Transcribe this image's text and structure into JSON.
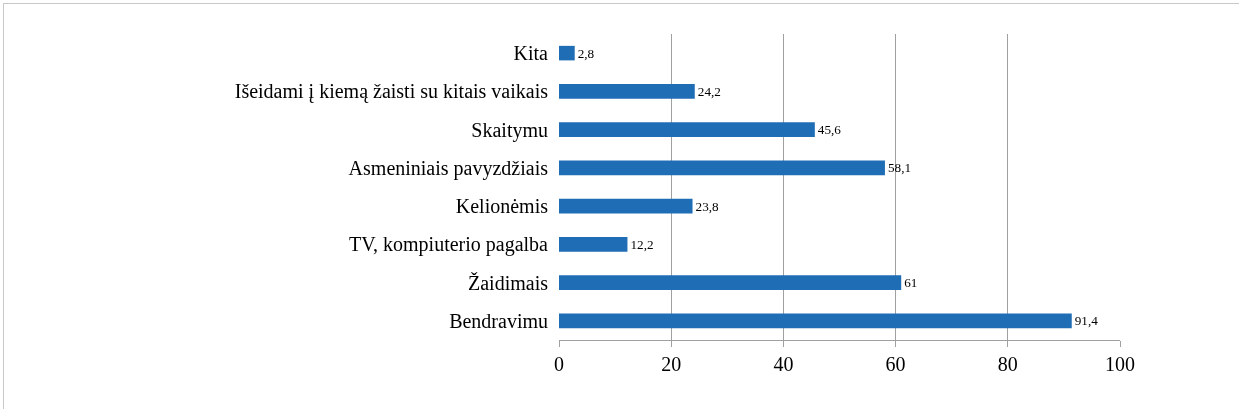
{
  "chart_data": {
    "type": "bar",
    "orientation": "horizontal",
    "categories": [
      "Kita",
      "Išeidami į kiemą žaisti su kitais vaikais",
      "Skaitymu",
      "Asmeniniais pavyzdžiais",
      "Kelionėmis",
      "TV, kompiuterio pagalba",
      "Žaidimais",
      "Bendravimu"
    ],
    "values": [
      2.8,
      24.2,
      45.6,
      58.1,
      23.8,
      12.2,
      61,
      91.4
    ],
    "value_labels": [
      "2,8",
      "24,2",
      "45,6",
      "58,1",
      "23,8",
      "12,2",
      "61",
      "91,4"
    ],
    "color": "#1f6db5",
    "xlim": [
      0,
      100
    ],
    "xticks": [
      0,
      20,
      40,
      60,
      80,
      100
    ],
    "grid": "x"
  }
}
